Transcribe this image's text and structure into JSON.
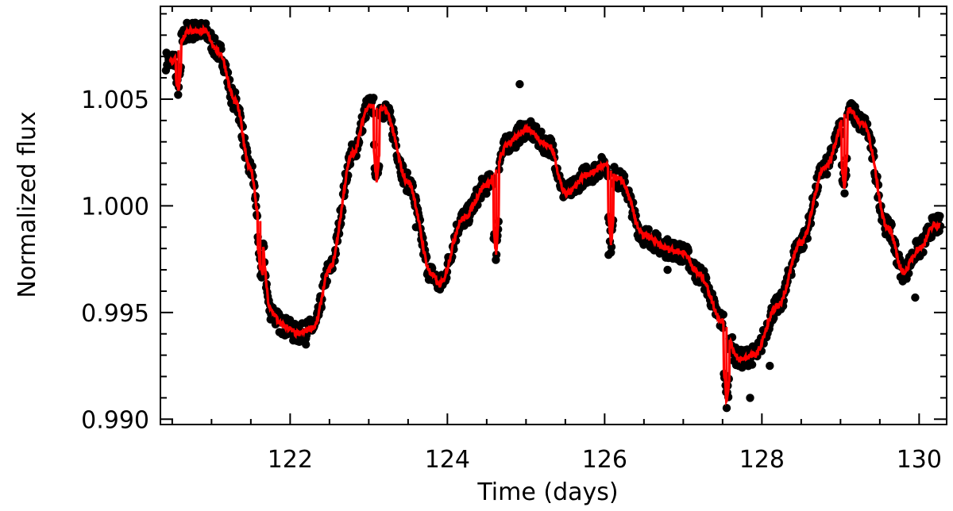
{
  "chart_data": {
    "type": "scatter",
    "xlabel": "Time (days)",
    "ylabel": "Normalized flux",
    "xlim": [
      120.35,
      130.35
    ],
    "ylim": [
      0.98975,
      1.00935
    ],
    "xticks": [
      122,
      124,
      126,
      128,
      130
    ],
    "xtick_labels": [
      "122",
      "124",
      "126",
      "128",
      "130"
    ],
    "yticks": [
      0.99,
      0.995,
      1.0,
      1.005
    ],
    "ytick_labels": [
      "0.990",
      "0.995",
      "1.000",
      "1.005"
    ],
    "grid": false,
    "legend": "none",
    "series": [
      {
        "kind": "observed points",
        "color": "#000000",
        "x": [
          120.5,
          120.7,
          120.9,
          121.1,
          121.3,
          121.5,
          121.6,
          121.75,
          121.9,
          122.1,
          122.3,
          122.5,
          122.8,
          123.0,
          123.2,
          123.5,
          123.8,
          123.9,
          124.2,
          124.5,
          124.8,
          125.0,
          125.3,
          125.5,
          125.8,
          126.0,
          126.2,
          126.5,
          126.8,
          127.0,
          127.2,
          127.5,
          127.7,
          127.9,
          128.2,
          128.5,
          128.8,
          129.1,
          129.3,
          129.6,
          129.8,
          130.0,
          130.2
        ],
        "y": [
          1.0068,
          1.0082,
          1.0082,
          1.0072,
          1.0049,
          1.0017,
          0.9995,
          0.9951,
          0.9944,
          0.994,
          0.9943,
          0.997,
          1.0025,
          1.0047,
          1.0045,
          1.0011,
          0.9968,
          0.9963,
          0.9994,
          1.001,
          1.003,
          1.0036,
          1.0028,
          1.0006,
          1.0015,
          1.0019,
          1.0012,
          0.9986,
          0.998,
          0.9978,
          0.9968,
          0.9946,
          0.9928,
          0.993,
          0.9953,
          0.9983,
          1.0018,
          1.0045,
          1.0038,
          0.999,
          0.9969,
          0.998,
          0.9991
        ]
      },
      {
        "kind": "model",
        "color": "#ff0000",
        "x": [
          120.5,
          120.7,
          120.9,
          121.1,
          121.3,
          121.5,
          121.6,
          121.75,
          121.9,
          122.1,
          122.3,
          122.5,
          122.8,
          123.0,
          123.2,
          123.5,
          123.8,
          123.9,
          124.2,
          124.5,
          124.8,
          125.0,
          125.3,
          125.5,
          125.8,
          126.0,
          126.2,
          126.5,
          126.8,
          127.0,
          127.2,
          127.5,
          127.7,
          127.9,
          128.2,
          128.5,
          128.8,
          129.1,
          129.3,
          129.6,
          129.8,
          130.0,
          130.2
        ],
        "y": [
          1.0068,
          1.0082,
          1.0082,
          1.0072,
          1.0049,
          1.0017,
          0.9995,
          0.9951,
          0.9944,
          0.994,
          0.9943,
          0.997,
          1.0025,
          1.0047,
          1.0045,
          1.0011,
          0.9968,
          0.9963,
          0.9994,
          1.001,
          1.003,
          1.0036,
          1.0028,
          1.0006,
          1.0015,
          1.0019,
          1.0012,
          0.9986,
          0.998,
          0.9978,
          0.9968,
          0.9946,
          0.9928,
          0.993,
          0.9953,
          0.9983,
          1.0018,
          1.0045,
          1.0038,
          0.999,
          0.9969,
          0.998,
          0.9991
        ]
      }
    ],
    "annotations": [
      {
        "kind": "transit dip",
        "x": 120.58,
        "depth": 0.0018
      },
      {
        "kind": "transit dip",
        "x": 121.62,
        "depth": 0.0023
      },
      {
        "kind": "transit dip",
        "x": 123.1,
        "depth": 0.0035
      },
      {
        "kind": "transit dip",
        "x": 124.62,
        "depth": 0.004
      },
      {
        "kind": "transit dip",
        "x": 126.08,
        "depth": 0.0035
      },
      {
        "kind": "transit dip",
        "x": 127.55,
        "depth": 0.0035
      },
      {
        "kind": "transit dip",
        "x": 129.05,
        "depth": 0.0035
      }
    ],
    "outliers": [
      {
        "x": 124.92,
        "y": 1.0057
      },
      {
        "x": 124.6,
        "y": 0.9985
      },
      {
        "x": 126.05,
        "y": 0.9977
      },
      {
        "x": 127.85,
        "y": 0.991
      },
      {
        "x": 128.1,
        "y": 0.9925
      },
      {
        "x": 129.95,
        "y": 0.9957
      },
      {
        "x": 126.8,
        "y": 0.997
      },
      {
        "x": 123.6,
        "y": 0.999
      },
      {
        "x": 122.2,
        "y": 0.9935
      }
    ]
  }
}
